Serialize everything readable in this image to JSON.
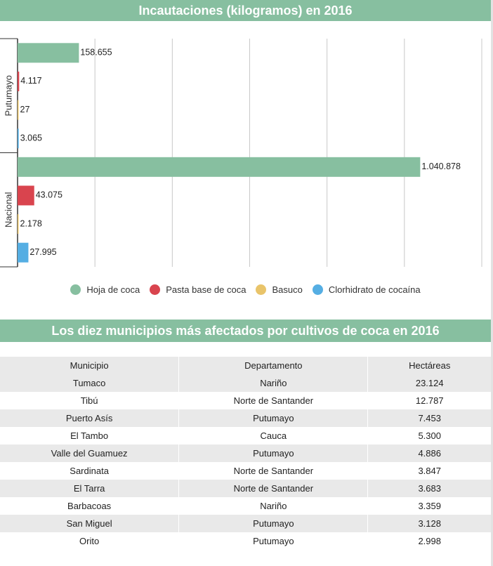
{
  "chart_title": "Incautaciones (kilogramos) en 2016",
  "chart_data": {
    "type": "bar",
    "orientation": "horizontal",
    "title": "Incautaciones (kilogramos) en 2016",
    "categories": [
      "Putumayo",
      "Nacional"
    ],
    "series": [
      {
        "name": "Hoja de coca",
        "color": "#87bfa0",
        "values": [
          158655,
          1040878
        ],
        "labels": [
          "158.655",
          "1.040.878"
        ]
      },
      {
        "name": "Pasta base de coca",
        "color": "#d9444e",
        "values": [
          4117,
          43075
        ],
        "labels": [
          "4.117",
          "43.075"
        ]
      },
      {
        "name": "Basuco",
        "color": "#e9c46a",
        "values": [
          27,
          2178
        ],
        "labels": [
          "27",
          "2.178"
        ]
      },
      {
        "name": "Clorhidrato de cocaína",
        "color": "#55aee3",
        "values": [
          3065,
          27995
        ],
        "labels": [
          "3.065",
          "27.995"
        ]
      }
    ],
    "xlim": [
      0,
      1200000
    ],
    "grid": true,
    "legend": "bottom"
  },
  "table": {
    "title": "Los diez municipios más afectados por cultivos de coca en 2016",
    "headers": [
      "Municipio",
      "Departamento",
      "Hectáreas"
    ],
    "rows": [
      [
        "Tumaco",
        "Nariño",
        "23.124"
      ],
      [
        "Tibú",
        "Norte de Santander",
        "12.787"
      ],
      [
        "Puerto Asís",
        "Putumayo",
        "7.453"
      ],
      [
        "El Tambo",
        "Cauca",
        "5.300"
      ],
      [
        "Valle del Guamuez",
        "Putumayo",
        "4.886"
      ],
      [
        "Sardinata",
        "Norte de Santander",
        "3.847"
      ],
      [
        "El Tarra",
        "Norte de Santander",
        "3.683"
      ],
      [
        "Barbacoas",
        "Nariño",
        "3.359"
      ],
      [
        "San Miguel",
        "Putumayo",
        "3.128"
      ],
      [
        "Orito",
        "Putumayo",
        "2.998"
      ]
    ]
  }
}
